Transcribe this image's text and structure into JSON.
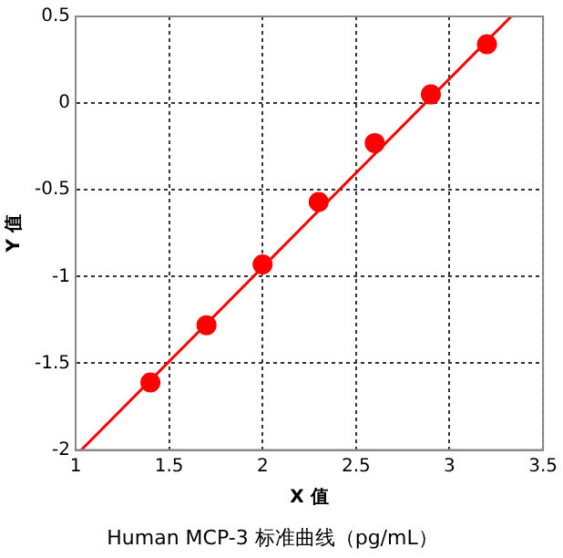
{
  "chart_data": {
    "type": "scatter",
    "title": "Human MCP-3 标准曲线（pg/mL）",
    "xlabel": "X 值",
    "ylabel": "Y 值",
    "xlim": [
      1,
      3.5
    ],
    "xticks": [
      1,
      1.5,
      2,
      2.5,
      3,
      3.5
    ],
    "ylim": [
      -2,
      0.5
    ],
    "yticks": [
      -2,
      -1.5,
      -1,
      -0.5,
      0,
      0.5
    ],
    "grid": true,
    "legend": false,
    "series": [
      {
        "type": "scatter",
        "color": "#ff0000",
        "marker": "circle",
        "x": [
          1.4,
          1.7,
          2.0,
          2.3,
          2.6,
          2.9,
          3.2
        ],
        "values": [
          -1.61,
          -1.28,
          -0.93,
          -0.57,
          -0.23,
          0.05,
          0.34
        ]
      },
      {
        "type": "line",
        "color": "#ff0000",
        "marker": "none",
        "line_style": "solid",
        "x": [
          1.03,
          3.33
        ],
        "values": [
          -2,
          0.5
        ]
      }
    ]
  }
}
